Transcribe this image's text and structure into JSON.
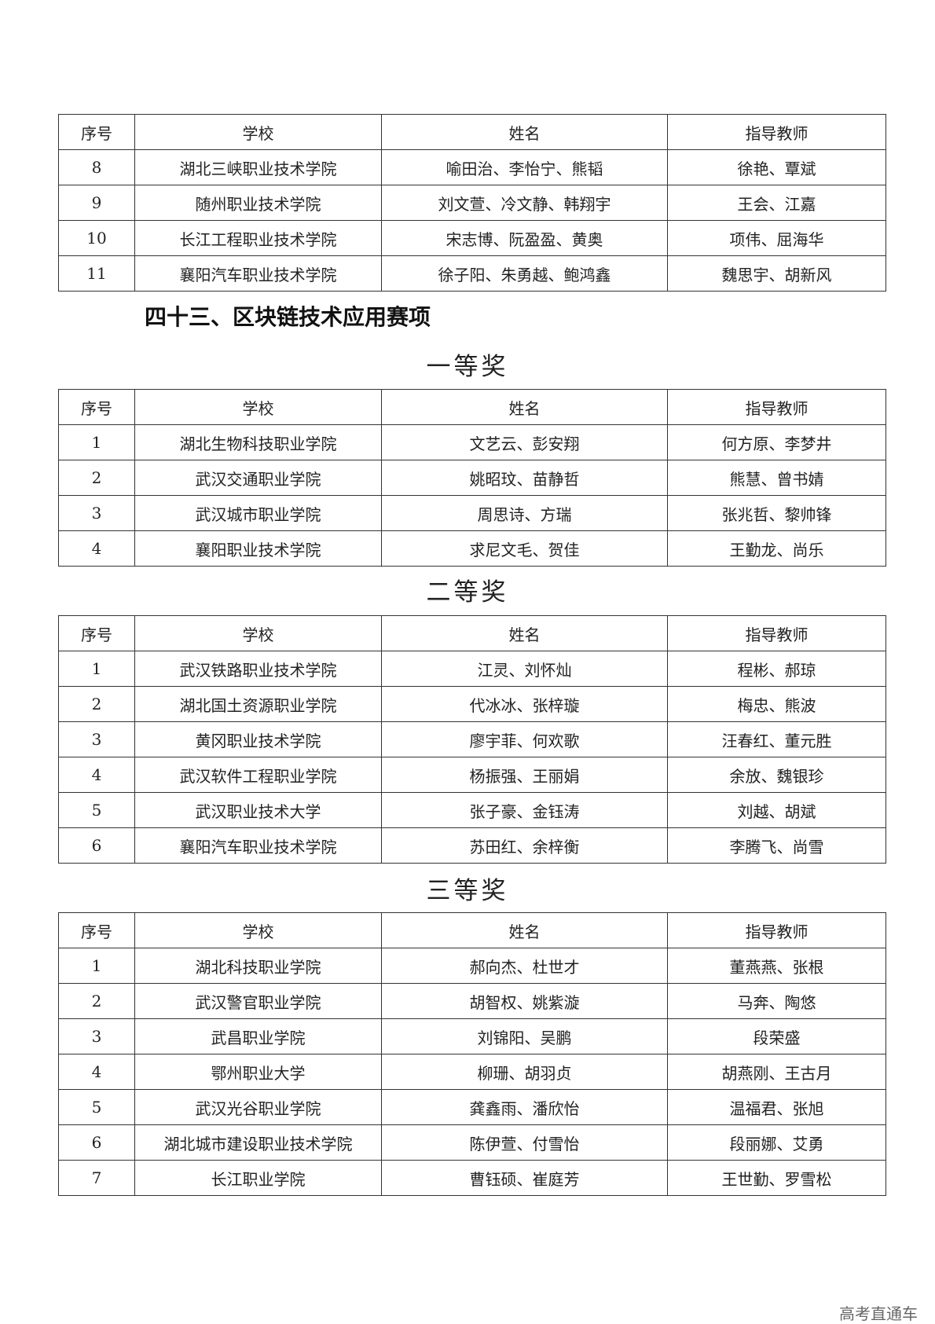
{
  "headers": [
    "序号",
    "学校",
    "姓名",
    "指导教师"
  ],
  "section_title": "四十三、区块链技术应用赛项",
  "watermark": "高考直通车",
  "tables": [
    {
      "award": "",
      "rows": [
        [
          "8",
          "湖北三峡职业技术学院",
          "喻田治、李怡宁、熊韬",
          "徐艳、覃斌"
        ],
        [
          "9",
          "随州职业技术学院",
          "刘文萱、冷文静、韩翔宇",
          "王会、江嘉"
        ],
        [
          "10",
          "长江工程职业技术学院",
          "宋志博、阮盈盈、黄奥",
          "项伟、屈海华"
        ],
        [
          "11",
          "襄阳汽车职业技术学院",
          "徐子阳、朱勇越、鲍鸿鑫",
          "魏思宇、胡新风"
        ]
      ]
    },
    {
      "award": "一等奖",
      "rows": [
        [
          "1",
          "湖北生物科技职业学院",
          "文艺云、彭安翔",
          "何方原、李梦井"
        ],
        [
          "2",
          "武汉交通职业学院",
          "姚昭玟、苗静哲",
          "熊慧、曾书婧"
        ],
        [
          "3",
          "武汉城市职业学院",
          "周思诗、方瑞",
          "张兆哲、黎帅锋"
        ],
        [
          "4",
          "襄阳职业技术学院",
          "求尼文毛、贺佳",
          "王勤龙、尚乐"
        ]
      ]
    },
    {
      "award": "二等奖",
      "rows": [
        [
          "1",
          "武汉铁路职业技术学院",
          "江灵、刘怀灿",
          "程彬、郝琼"
        ],
        [
          "2",
          "湖北国土资源职业学院",
          "代冰冰、张梓璇",
          "梅忠、熊波"
        ],
        [
          "3",
          "黄冈职业技术学院",
          "廖宇菲、何欢歌",
          "汪春红、董元胜"
        ],
        [
          "4",
          "武汉软件工程职业学院",
          "杨振强、王丽娟",
          "余放、魏银珍"
        ],
        [
          "5",
          "武汉职业技术大学",
          "张子豪、金钰涛",
          "刘越、胡斌"
        ],
        [
          "6",
          "襄阳汽车职业技术学院",
          "苏田红、余梓衡",
          "李腾飞、尚雪"
        ]
      ]
    },
    {
      "award": "三等奖",
      "rows": [
        [
          "1",
          "湖北科技职业学院",
          "郝向杰、杜世才",
          "董燕燕、张根"
        ],
        [
          "2",
          "武汉警官职业学院",
          "胡智权、姚紫漩",
          "马奔、陶悠"
        ],
        [
          "3",
          "武昌职业学院",
          "刘锦阳、吴鹏",
          "段荣盛"
        ],
        [
          "4",
          "鄂州职业大学",
          "柳珊、胡羽贞",
          "胡燕刚、王古月"
        ],
        [
          "5",
          "武汉光谷职业学院",
          "龚鑫雨、潘欣怡",
          "温福君、张旭"
        ],
        [
          "6",
          "湖北城市建设职业技术学院",
          "陈伊萱、付雪怡",
          "段丽娜、艾勇"
        ],
        [
          "7",
          "长江职业学院",
          "曹钰硕、崔庭芳",
          "王世勤、罗雪松"
        ]
      ]
    }
  ]
}
